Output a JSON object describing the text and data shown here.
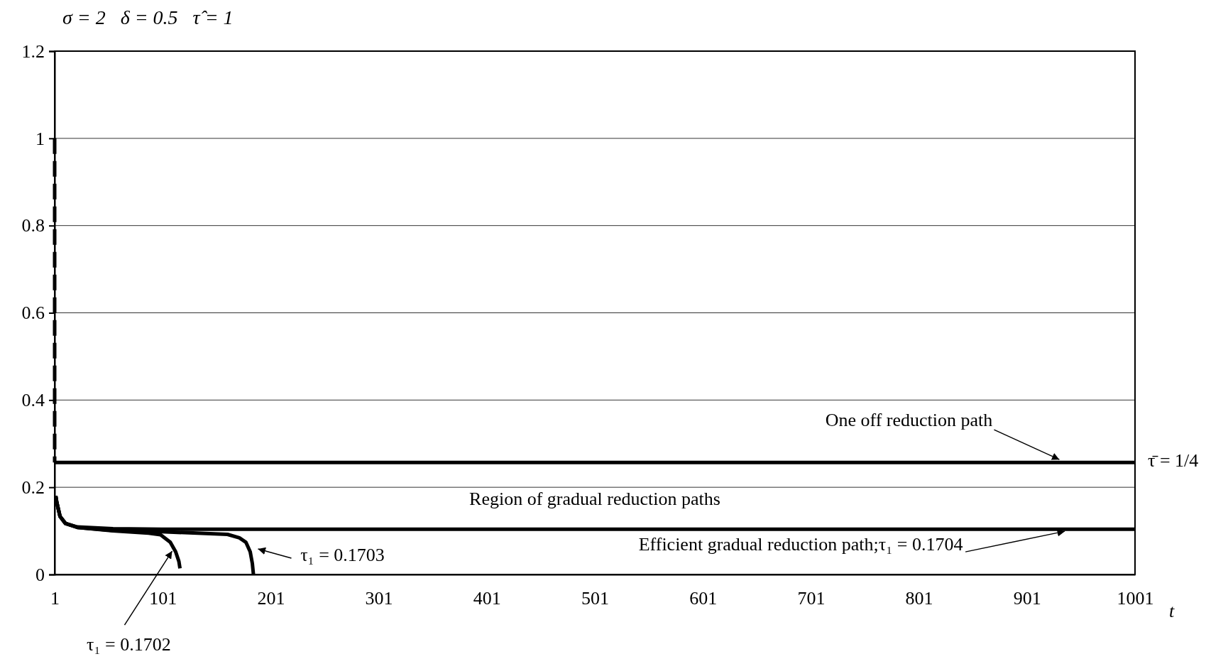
{
  "chart_data": {
    "type": "line",
    "title": "σ = 2   δ = 0.5   τ̂ = 1",
    "xlabel": "t",
    "xlim": [
      1,
      1001
    ],
    "xticks": [
      1,
      101,
      201,
      301,
      401,
      501,
      601,
      701,
      801,
      901,
      1001
    ],
    "ylim": [
      0,
      1.2
    ],
    "yticks": [
      0,
      0.2,
      0.4,
      0.6,
      0.8,
      1,
      1.2
    ],
    "grid": "y",
    "marker": "none",
    "series": [
      {
        "color": "#000000",
        "line_style": "dashed",
        "x": [
          1,
          1
        ],
        "values": [
          1,
          0.257
        ]
      },
      {
        "color": "#000000",
        "line_style": "solid",
        "x": [
          1,
          1001
        ],
        "values": [
          0.257,
          0.257
        ]
      },
      {
        "color": "#000000",
        "line_style": "solid",
        "x": [
          2,
          3,
          6,
          11,
          22,
          55,
          100,
          200,
          1001
        ],
        "values": [
          0.18,
          0.165,
          0.133,
          0.117,
          0.109,
          0.105,
          0.104,
          0.104,
          0.104
        ]
      },
      {
        "color": "#000000",
        "line_style": "solid",
        "x": [
          2,
          3,
          6,
          11,
          22,
          55,
          88,
          99,
          108,
          113,
          116,
          117
        ],
        "values": [
          0.18,
          0.165,
          0.133,
          0.117,
          0.108,
          0.1,
          0.095,
          0.091,
          0.074,
          0.052,
          0.03,
          0.014
        ]
      },
      {
        "color": "#000000",
        "line_style": "solid",
        "x": [
          2,
          3,
          6,
          11,
          22,
          55,
          100,
          161,
          172,
          178,
          182,
          184,
          185
        ],
        "values": [
          0.18,
          0.165,
          0.133,
          0.117,
          0.108,
          0.101,
          0.098,
          0.092,
          0.084,
          0.074,
          0.052,
          0.025,
          0
        ]
      }
    ],
    "annotations": [
      {
        "text": "One off reduction path",
        "x": 931,
        "y": 0.257
      },
      {
        "text": "Efficient gradual reduction path;τ₁ = 0.1704",
        "x": 936,
        "y": 0.104
      },
      {
        "text": "τ₁ = 0.1703",
        "x": 182,
        "y": 0.052
      },
      {
        "text": "τ₁ = 0.1702",
        "x": 113,
        "y": 0.052
      },
      {
        "text": "τ̄ = 1/4",
        "x": 1001,
        "y": 0.257
      },
      "Region of gradual reduction paths"
    ]
  }
}
